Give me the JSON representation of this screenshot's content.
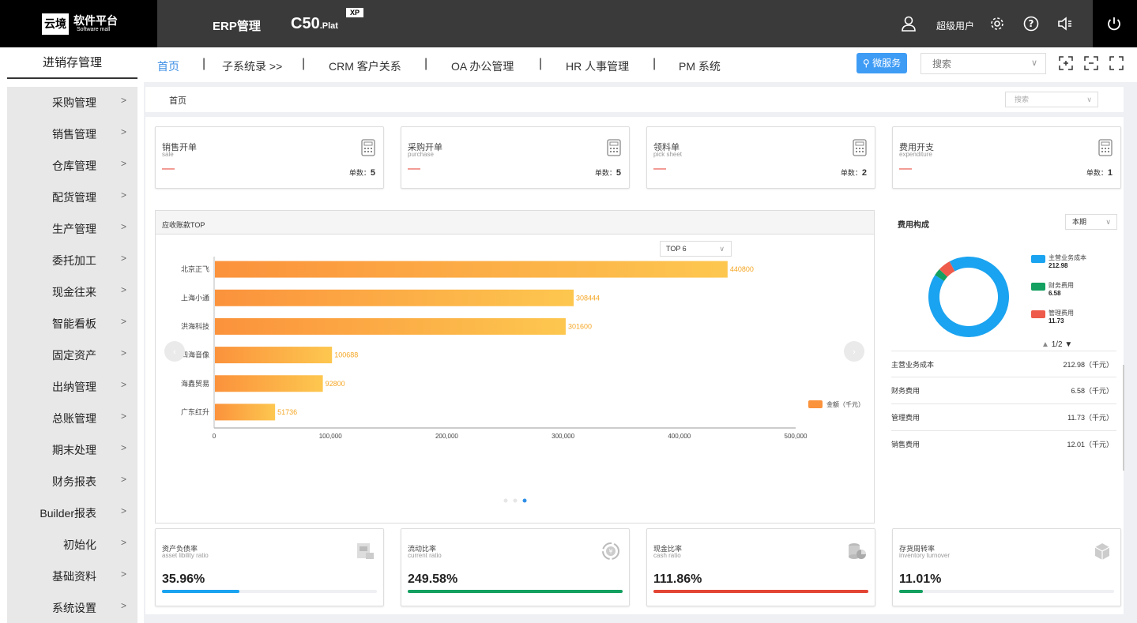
{
  "header": {
    "logo_box": "云境",
    "logo_title": "软件平台",
    "logo_sub": "Software mall",
    "erp": "ERP管理",
    "product": "C50",
    "product_suffix": ".Plat",
    "badge": "XP",
    "user": "超级用户"
  },
  "sidebar": {
    "title": "进销存管理",
    "items": [
      "采购管理",
      "销售管理",
      "仓库管理",
      "配货管理",
      "生产管理",
      "委托加工",
      "现金往来",
      "智能看板",
      "固定资产",
      "出纳管理",
      "总账管理",
      "期末处理",
      "财务报表",
      "Builder报表",
      "初始化",
      "基础资料",
      "系统设置"
    ]
  },
  "nav": {
    "tabs": [
      "首页",
      "子系统录 >>",
      "CRM 客户关系",
      "OA 办公管理",
      "HR 人事管理",
      "PM 系统"
    ],
    "micro_service": "微服务",
    "search_placeholder": "搜索"
  },
  "breadcrumb": {
    "home": "首页",
    "search_placeholder": "搜索"
  },
  "stats": [
    {
      "title": "销售开单",
      "sub": "sale",
      "dash": "—",
      "count_label": "单数：",
      "count": "5"
    },
    {
      "title": "采购开单",
      "sub": "purchase",
      "dash": "—",
      "count_label": "单数：",
      "count": "5"
    },
    {
      "title": "领料单",
      "sub": "pick sheet",
      "dash": "—",
      "count_label": "单数：",
      "count": "2"
    },
    {
      "title": "费用开支",
      "sub": "expenditure",
      "dash": "—",
      "count_label": "单数：",
      "count": "1"
    }
  ],
  "receivable": {
    "title": "应收账款TOP",
    "select": "TOP 6",
    "legend": "金额（千元）"
  },
  "chart_data": {
    "type": "bar",
    "orientation": "horizontal",
    "categories": [
      "北京正飞",
      "上海小通",
      "洪海科技",
      "四海音像",
      "海鑫贸易",
      "广东红升"
    ],
    "series": [
      {
        "name": "金额（千元）",
        "values": [
          440800,
          308444,
          301600,
          100688,
          92800,
          51736
        ]
      }
    ],
    "x_ticks": [
      "0",
      "100,000",
      "200,000",
      "300,000",
      "400,000",
      "500,000"
    ],
    "xlim": [
      0,
      500000
    ],
    "colors": {
      "bar_start": "#fb923c",
      "bar_end": "#fdc74f",
      "label": "#f5a623"
    }
  },
  "fees": {
    "title": "费用构成",
    "period": "本期",
    "pager": "1/2",
    "donut": [
      {
        "name": "主营业务成本",
        "value": 212.98,
        "color": "#1aa3f0"
      },
      {
        "name": "财务费用",
        "value": 6.58,
        "color": "#13a060"
      },
      {
        "name": "管理费用",
        "value": 11.73,
        "color": "#ee5b4a"
      }
    ],
    "legend_values": [
      "212.98",
      "6.58",
      "11.73"
    ],
    "rows": [
      {
        "name": "主营业务成本",
        "value": "212.98（千元）"
      },
      {
        "name": "财务费用",
        "value": "6.58（千元）"
      },
      {
        "name": "管理费用",
        "value": "11.73（千元）"
      },
      {
        "name": "销售费用",
        "value": "12.01（千元）"
      }
    ]
  },
  "ratios": [
    {
      "title": "资产负债率",
      "sub": "asset libility ratio",
      "value": "35.96%",
      "fraction": 0.3596,
      "color": "#1aa3f0"
    },
    {
      "title": "流动比率",
      "sub": "current ratio",
      "value": "249.58%",
      "fraction": 1.0,
      "color": "#13a060"
    },
    {
      "title": "现金比率",
      "sub": "cash ratio",
      "value": "111.86%",
      "fraction": 1.0,
      "color": "#e34535"
    },
    {
      "title": "存货周转率",
      "sub": "inventory turnover",
      "value": "11.01%",
      "fraction": 0.1101,
      "color": "#13a060"
    }
  ]
}
